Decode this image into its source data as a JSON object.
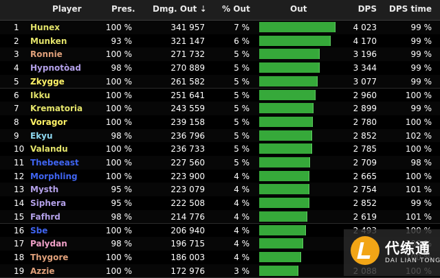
{
  "header": {
    "player": "Player",
    "presence": "Pres.",
    "damage_out": "Dmg. Out ⇣",
    "percent_out": "% Out",
    "out_bar": "Out",
    "dps": "DPS",
    "dps_time": "DPS time"
  },
  "colors": {
    "header_bg": "#1e1e1e",
    "bar_green": "#36a93a",
    "row_bg": "#000000"
  },
  "rows": [
    {
      "rank": "1",
      "name": "Hunex",
      "name_color": "#e3e36a",
      "presence": "100 %",
      "damage": "341 957",
      "percent": "7 %",
      "bar_fraction": 1.0,
      "dps": "4 023",
      "dps_time": "99 %"
    },
    {
      "rank": "2",
      "name": "Munken",
      "name_color": "#e3e36a",
      "presence": "93 %",
      "damage": "321 147",
      "percent": "6 %",
      "bar_fraction": 0.939,
      "dps": "4 170",
      "dps_time": "99 %"
    },
    {
      "rank": "3",
      "name": "Ronnie",
      "name_color": "#e0a07a",
      "presence": "100 %",
      "damage": "271 732",
      "percent": "5 %",
      "bar_fraction": 0.795,
      "dps": "3 196",
      "dps_time": "99 %"
    },
    {
      "rank": "4",
      "name": "Hypnotòad",
      "name_color": "#b3a0e8",
      "presence": "98 %",
      "damage": "270 889",
      "percent": "5 %",
      "bar_fraction": 0.792,
      "dps": "3 344",
      "dps_time": "99 %"
    },
    {
      "rank": "5",
      "name": "Zkygge",
      "name_color": "#fff266",
      "presence": "100 %",
      "damage": "261 582",
      "percent": "5 %",
      "bar_fraction": 0.765,
      "dps": "3 077",
      "dps_time": "99 %"
    },
    {
      "rank": "6",
      "name": "Ikku",
      "name_color": "#e3e36a",
      "presence": "100 %",
      "damage": "251 641",
      "percent": "5 %",
      "bar_fraction": 0.736,
      "dps": "2 960",
      "dps_time": "100 %"
    },
    {
      "rank": "7",
      "name": "Krematoria",
      "name_color": "#e3e36a",
      "presence": "100 %",
      "damage": "243 559",
      "percent": "5 %",
      "bar_fraction": 0.712,
      "dps": "2 899",
      "dps_time": "99 %"
    },
    {
      "rank": "8",
      "name": "Voragor",
      "name_color": "#fff266",
      "presence": "100 %",
      "damage": "239 158",
      "percent": "5 %",
      "bar_fraction": 0.699,
      "dps": "2 780",
      "dps_time": "100 %"
    },
    {
      "rank": "9",
      "name": "Ekyu",
      "name_color": "#8ed8f0",
      "presence": "98 %",
      "damage": "236 796",
      "percent": "5 %",
      "bar_fraction": 0.692,
      "dps": "2 852",
      "dps_time": "102 %"
    },
    {
      "rank": "10",
      "name": "Valandu",
      "name_color": "#e3e36a",
      "presence": "100 %",
      "damage": "236 733",
      "percent": "5 %",
      "bar_fraction": 0.692,
      "dps": "2 785",
      "dps_time": "100 %"
    },
    {
      "rank": "11",
      "name": "Thebeeast",
      "name_color": "#3f64f0",
      "presence": "100 %",
      "damage": "227 560",
      "percent": "5 %",
      "bar_fraction": 0.665,
      "dps": "2 709",
      "dps_time": "98 %"
    },
    {
      "rank": "12",
      "name": "Morphling",
      "name_color": "#3f64f0",
      "presence": "100 %",
      "damage": "223 900",
      "percent": "4 %",
      "bar_fraction": 0.655,
      "dps": "2 665",
      "dps_time": "100 %"
    },
    {
      "rank": "13",
      "name": "Mysth",
      "name_color": "#b3a0e8",
      "presence": "95 %",
      "damage": "223 079",
      "percent": "4 %",
      "bar_fraction": 0.652,
      "dps": "2 754",
      "dps_time": "101 %"
    },
    {
      "rank": "14",
      "name": "Siphera",
      "name_color": "#b3a0e8",
      "presence": "95 %",
      "damage": "222 508",
      "percent": "4 %",
      "bar_fraction": 0.651,
      "dps": "2 852",
      "dps_time": "99 %"
    },
    {
      "rank": "15",
      "name": "Fafhrd",
      "name_color": "#b3a0e8",
      "presence": "98 %",
      "damage": "214 776",
      "percent": "4 %",
      "bar_fraction": 0.628,
      "dps": "2 619",
      "dps_time": "101 %"
    },
    {
      "rank": "16",
      "name": "Sbe",
      "name_color": "#3f64f0",
      "presence": "100 %",
      "damage": "206 940",
      "percent": "4 %",
      "bar_fraction": 0.605,
      "dps": "2 493",
      "dps_time": "100 %"
    },
    {
      "rank": "17",
      "name": "Palydan",
      "name_color": "#f0a0c8",
      "presence": "98 %",
      "damage": "196 715",
      "percent": "4 %",
      "bar_fraction": 0.575,
      "dps": "2 371",
      "dps_time": "100 %"
    },
    {
      "rank": "18",
      "name": "Thygore",
      "name_color": "#e0a07a",
      "presence": "100 %",
      "damage": "186 003",
      "percent": "4 %",
      "bar_fraction": 0.544,
      "dps": "2 250",
      "dps_time": "100 %"
    },
    {
      "rank": "19",
      "name": "Azzie",
      "name_color": "#e0a07a",
      "presence": "100 %",
      "damage": "172 976",
      "percent": "3 %",
      "bar_fraction": 0.506,
      "dps": "2 088",
      "dps_time": "100 %"
    }
  ],
  "watermark": {
    "title": "代练通",
    "subtitle": "DAI LIAN TONG"
  }
}
